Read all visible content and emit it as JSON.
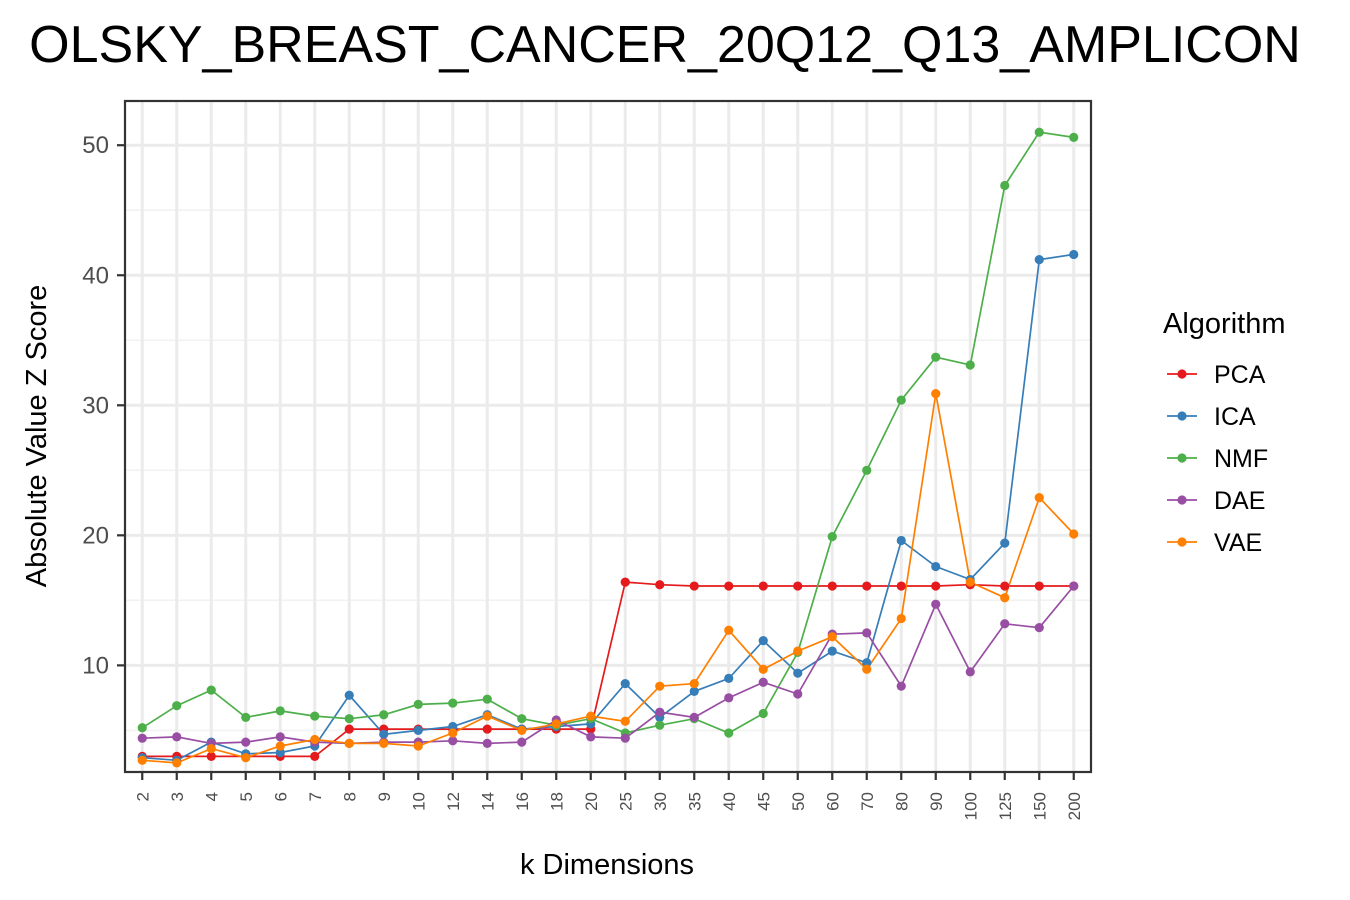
{
  "chart_data": {
    "type": "line",
    "title": "OLSKY_BREAST_CANCER_20Q12_Q13_AMPLICON",
    "xlabel": "k Dimensions",
    "ylabel": "Absolute Value Z Score",
    "ylim": [
      1.8,
      53.4
    ],
    "yticks": [
      10,
      20,
      30,
      40,
      50
    ],
    "grid": true,
    "legend_title": "Algorithm",
    "legend_position": "right",
    "categories": [
      "2",
      "3",
      "4",
      "5",
      "6",
      "7",
      "8",
      "9",
      "10",
      "12",
      "14",
      "16",
      "18",
      "20",
      "25",
      "30",
      "35",
      "40",
      "45",
      "50",
      "60",
      "70",
      "80",
      "90",
      "100",
      "125",
      "150",
      "200"
    ],
    "series": [
      {
        "name": "PCA",
        "color": "#e41a1c",
        "values": [
          3.0,
          3.0,
          3.0,
          3.0,
          3.0,
          3.0,
          5.1,
          5.1,
          5.1,
          5.1,
          5.1,
          5.1,
          5.1,
          5.1,
          16.4,
          16.2,
          16.1,
          16.1,
          16.1,
          16.1,
          16.1,
          16.1,
          16.1,
          16.1,
          16.2,
          16.1,
          16.1,
          16.1
        ]
      },
      {
        "name": "ICA",
        "color": "#377eb8",
        "values": [
          2.9,
          2.7,
          4.1,
          3.2,
          3.3,
          3.8,
          7.7,
          4.7,
          5.0,
          5.3,
          6.2,
          5.1,
          5.3,
          5.5,
          8.6,
          6.0,
          8.0,
          9.0,
          11.9,
          9.4,
          11.1,
          10.2,
          19.6,
          17.6,
          16.6,
          19.4,
          41.2,
          41.6
        ]
      },
      {
        "name": "NMF",
        "color": "#4daf4a",
        "values": [
          5.2,
          6.9,
          8.1,
          6.0,
          6.5,
          6.1,
          5.9,
          6.2,
          7.0,
          7.1,
          7.4,
          5.9,
          5.4,
          5.9,
          4.8,
          5.4,
          5.9,
          4.8,
          6.3,
          11.0,
          19.9,
          25.0,
          30.4,
          33.7,
          33.1,
          46.9,
          51.0,
          50.6
        ]
      },
      {
        "name": "DAE",
        "color": "#984ea3",
        "values": [
          4.4,
          4.5,
          4.0,
          4.1,
          4.5,
          4.1,
          4.0,
          4.1,
          4.1,
          4.2,
          4.0,
          4.1,
          5.8,
          4.5,
          4.4,
          6.4,
          6.0,
          7.5,
          8.7,
          7.8,
          12.4,
          12.5,
          8.4,
          14.7,
          9.5,
          13.2,
          12.9,
          16.1
        ]
      },
      {
        "name": "VAE",
        "color": "#ff7f00",
        "values": [
          2.7,
          2.5,
          3.6,
          2.9,
          3.8,
          4.3,
          4.0,
          4.0,
          3.8,
          4.8,
          6.1,
          5.0,
          5.5,
          6.1,
          5.7,
          8.4,
          8.6,
          12.7,
          9.7,
          11.1,
          12.2,
          9.7,
          13.6,
          30.9,
          16.4,
          15.2,
          22.9,
          20.1
        ]
      }
    ]
  }
}
